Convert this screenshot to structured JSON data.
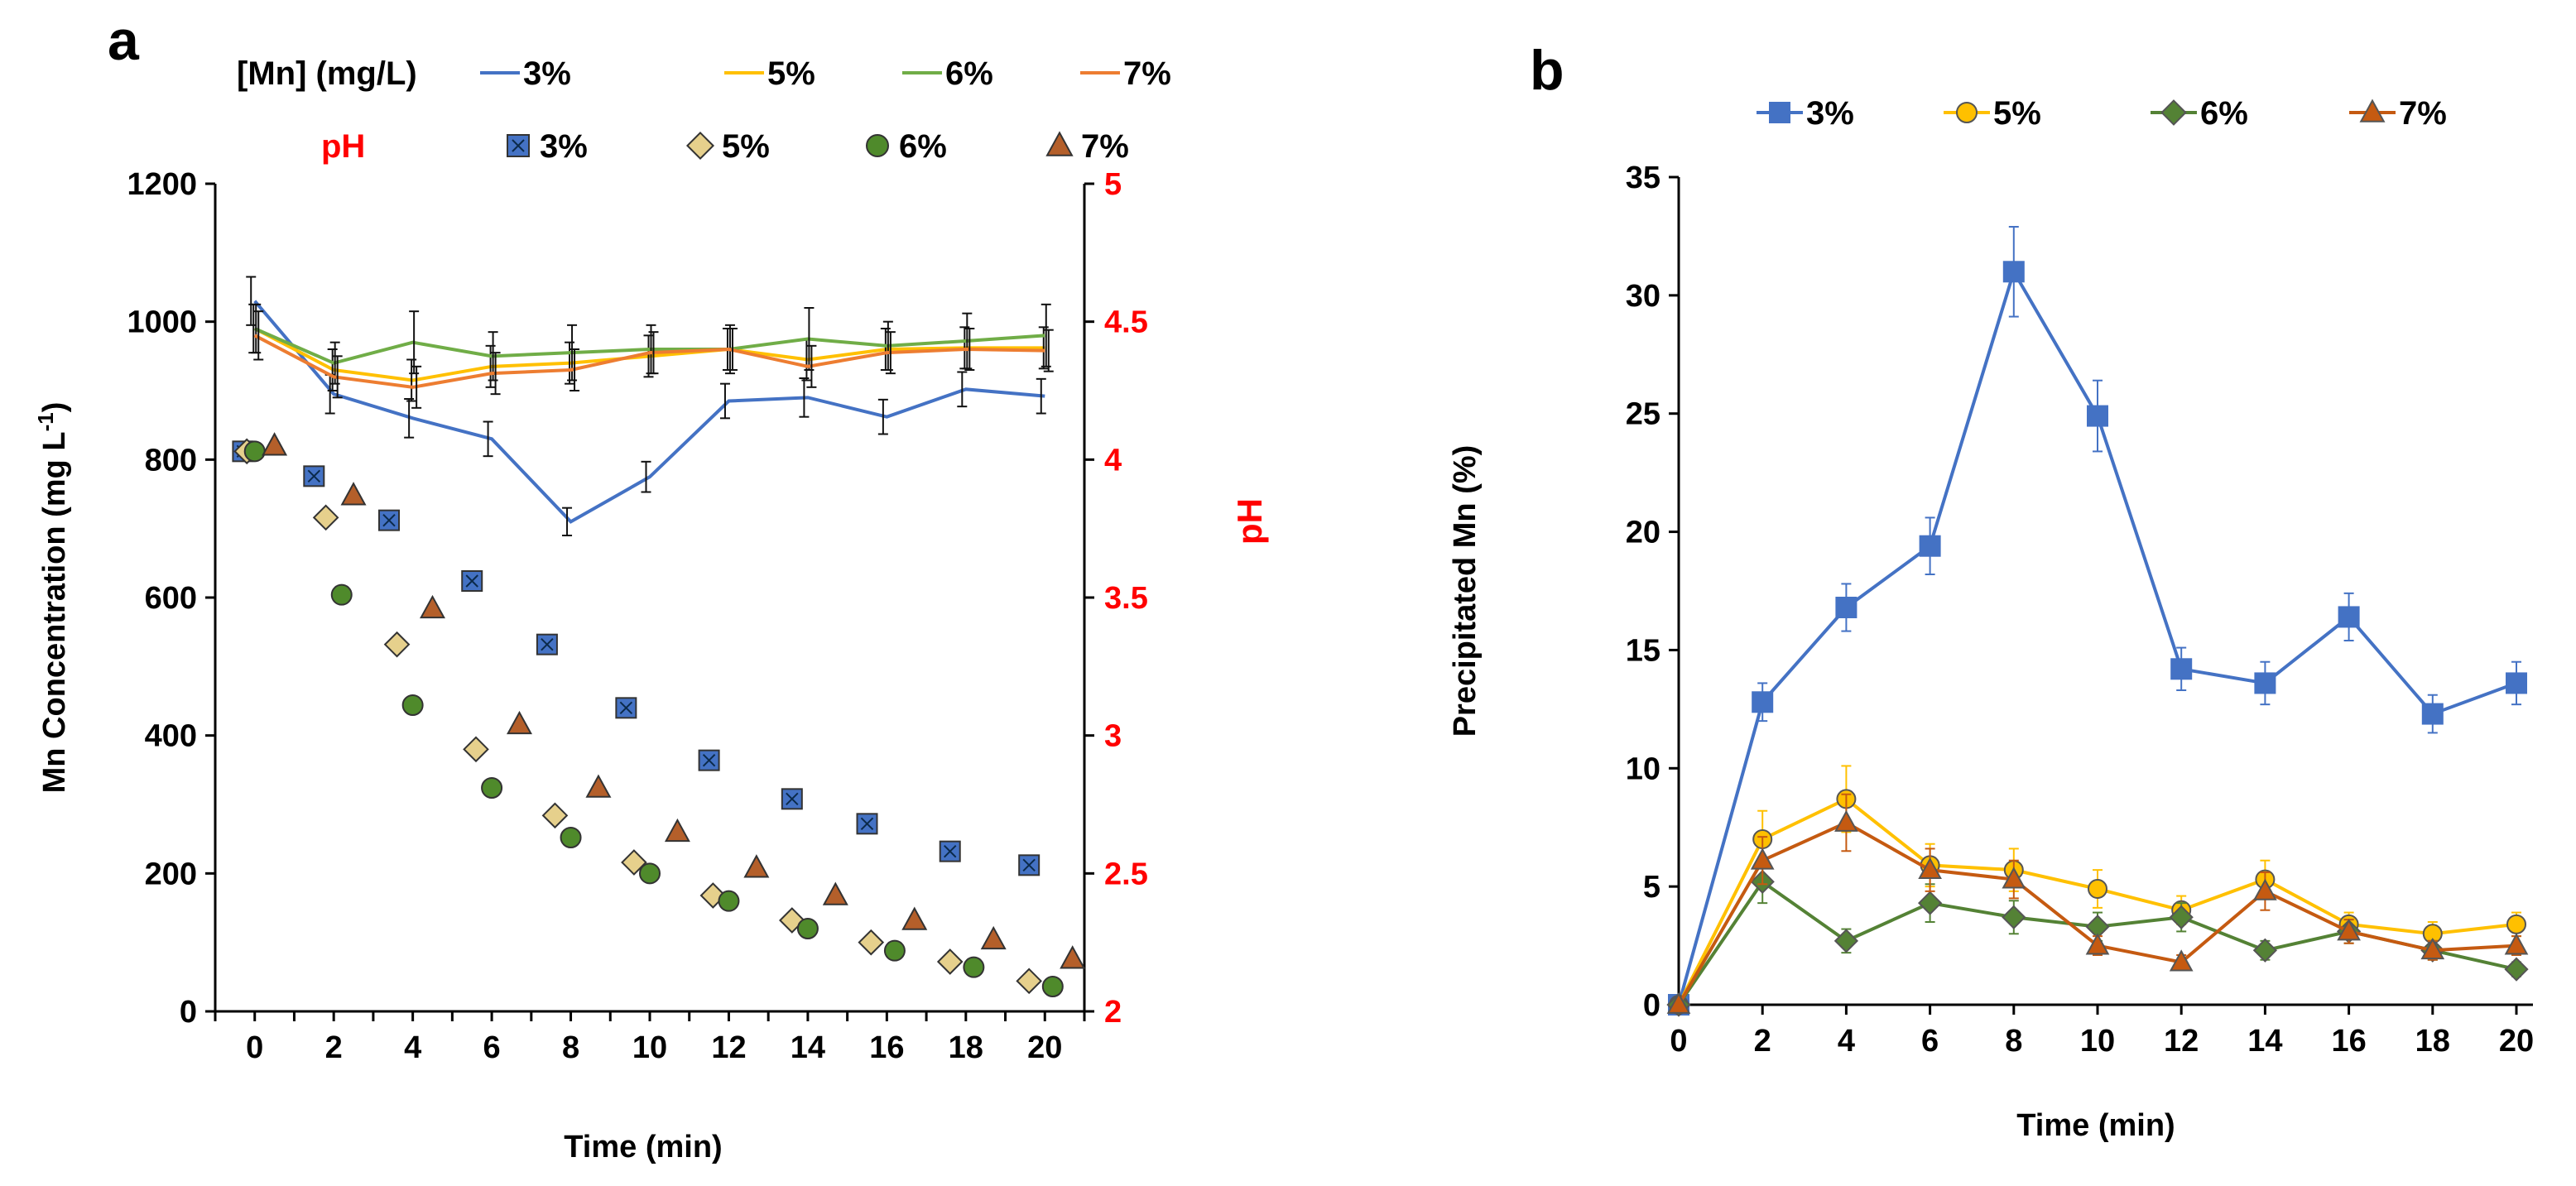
{
  "colors": {
    "c3": "#4472c4",
    "c5": "#ffc000",
    "c6": "#70ad47",
    "c7": "#ed7d31",
    "s5_fill": "#e6d08c",
    "s6_fill": "#4f8a2b",
    "s7_fill": "#b45f2a",
    "b_c3": "#4472c4",
    "b_c5": "#ffc000",
    "b_c6": "#548235",
    "b_c7": "#c55a11",
    "red": "#ff0000"
  },
  "chart_data": [
    {
      "panel": "a",
      "type": "line",
      "ylabel": "Mn Concentration (mg L",
      "ylabel_sup": "-1",
      "ylabel_close": ")",
      "y2label": "pH",
      "xlabel": "Time (min)",
      "ylim": [
        0,
        1200
      ],
      "y2lim": [
        2,
        5
      ],
      "xlim": [
        -1,
        21
      ],
      "x_ticks": [
        "0",
        "2",
        "4",
        "6",
        "8",
        "10",
        "12",
        "14",
        "16",
        "18",
        "20"
      ],
      "x_tick_values": [
        0,
        2,
        4,
        6,
        8,
        10,
        12,
        14,
        16,
        18,
        20
      ],
      "y_ticks": [
        "0",
        "200",
        "400",
        "600",
        "800",
        "1000",
        "1200"
      ],
      "y_tick_values": [
        0,
        200,
        400,
        600,
        800,
        1000,
        1200
      ],
      "y2_ticks": [
        "2",
        "2.5",
        "3",
        "3.5",
        "4",
        "4.5",
        "5"
      ],
      "y2_tick_values": [
        2,
        2.5,
        3,
        3.5,
        4,
        4.5,
        5
      ],
      "legend_line_title": "[Mn] (mg/L)",
      "legend_marker_title": "pH",
      "x": [
        0,
        2,
        4,
        6,
        8,
        10,
        12,
        14,
        16,
        18,
        20
      ],
      "mn_series": [
        {
          "name": "3%",
          "key": "c3",
          "values": [
            1030,
            895,
            860,
            830,
            710,
            775,
            885,
            890,
            862,
            902,
            892
          ],
          "err": [
            35,
            28,
            28,
            25,
            20,
            22,
            25,
            28,
            25,
            25,
            25
          ]
        },
        {
          "name": "5%",
          "key": "c5",
          "values": [
            990,
            930,
            915,
            935,
            940,
            950,
            960,
            945,
            960,
            962,
            962
          ],
          "err": [
            35,
            30,
            30,
            30,
            30,
            30,
            30,
            30,
            30,
            30,
            30
          ]
        },
        {
          "name": "6%",
          "key": "c6",
          "values": [
            990,
            940,
            970,
            950,
            955,
            960,
            960,
            975,
            965,
            972,
            980
          ],
          "err": [
            35,
            30,
            45,
            35,
            40,
            35,
            35,
            45,
            35,
            40,
            45
          ]
        },
        {
          "name": "7%",
          "key": "c7",
          "values": [
            980,
            920,
            905,
            925,
            930,
            955,
            960,
            935,
            955,
            960,
            958
          ],
          "err": [
            35,
            30,
            30,
            30,
            30,
            30,
            30,
            30,
            30,
            30,
            30
          ]
        }
      ],
      "ph_series": [
        {
          "name": "3%",
          "marker": "square",
          "fill": "c3",
          "x": [
            -0.3,
            1.5,
            3.4,
            5.5,
            7.4,
            9.4,
            11.5,
            13.6,
            15.5,
            17.6,
            19.6
          ],
          "values": [
            4.03,
            3.94,
            3.78,
            3.56,
            3.33,
            3.1,
            2.91,
            2.77,
            2.68,
            2.58,
            2.53
          ]
        },
        {
          "name": "5%",
          "marker": "diamond",
          "fill": "s5_fill",
          "x": [
            -0.2,
            1.8,
            3.6,
            5.6,
            7.6,
            9.6,
            11.6,
            13.6,
            15.6,
            17.6,
            19.6
          ],
          "values": [
            4.03,
            3.79,
            3.33,
            2.95,
            2.71,
            2.54,
            2.42,
            2.33,
            2.25,
            2.18,
            2.11
          ]
        },
        {
          "name": "6%",
          "marker": "circle",
          "fill": "s6_fill",
          "x": [
            0,
            2.2,
            4,
            6,
            8,
            10,
            12,
            14,
            16.2,
            18.2,
            20.2
          ],
          "values": [
            4.03,
            3.51,
            3.11,
            2.81,
            2.63,
            2.5,
            2.4,
            2.3,
            2.22,
            2.16,
            2.09
          ]
        },
        {
          "name": "7%",
          "marker": "triangle",
          "fill": "s7_fill",
          "x": [
            0.5,
            2.5,
            4.5,
            6.7,
            8.7,
            10.7,
            12.7,
            14.7,
            16.7,
            18.7,
            20.7
          ],
          "values": [
            4.05,
            3.87,
            3.46,
            3.04,
            2.81,
            2.65,
            2.52,
            2.42,
            2.33,
            2.26,
            2.19
          ]
        }
      ]
    },
    {
      "panel": "b",
      "type": "line",
      "ylabel": "Precipitated Mn (%)",
      "xlabel": "Time (min)",
      "ylim": [
        0,
        35
      ],
      "xlim": [
        0,
        20
      ],
      "x_ticks": [
        "0",
        "2",
        "4",
        "6",
        "8",
        "10",
        "12",
        "14",
        "16",
        "18",
        "20"
      ],
      "x_tick_values": [
        0,
        2,
        4,
        6,
        8,
        10,
        12,
        14,
        16,
        18,
        20
      ],
      "y_ticks": [
        "0",
        "5",
        "10",
        "15",
        "20",
        "25",
        "30",
        "35"
      ],
      "y_tick_values": [
        0,
        5,
        10,
        15,
        20,
        25,
        30,
        35
      ],
      "x": [
        0,
        2,
        4,
        6,
        8,
        10,
        12,
        14,
        16,
        18,
        20
      ],
      "series": [
        {
          "name": "3%",
          "marker": "square",
          "key": "b_c3",
          "values": [
            0,
            12.8,
            16.8,
            19.4,
            31,
            24.9,
            14.2,
            13.6,
            16.4,
            12.3,
            13.6
          ],
          "err": [
            0,
            0.8,
            1.0,
            1.2,
            1.9,
            1.5,
            0.9,
            0.9,
            1.0,
            0.8,
            0.9
          ]
        },
        {
          "name": "5%",
          "marker": "circle",
          "key": "b_c5",
          "values": [
            0,
            7.0,
            8.7,
            5.9,
            5.7,
            4.9,
            4.0,
            5.3,
            3.4,
            3.0,
            3.4
          ],
          "err": [
            0,
            1.2,
            1.4,
            0.9,
            0.9,
            0.8,
            0.6,
            0.8,
            0.5,
            0.5,
            0.5
          ]
        },
        {
          "name": "6%",
          "marker": "diamond",
          "key": "b_c6",
          "values": [
            0,
            5.2,
            2.7,
            4.3,
            3.7,
            3.3,
            3.7,
            2.3,
            3.1,
            2.3,
            1.5
          ],
          "err": [
            0,
            0.9,
            0.5,
            0.8,
            0.7,
            0.6,
            0.6,
            0.4,
            0.5,
            0.4,
            0.3
          ]
        },
        {
          "name": "7%",
          "marker": "triangle",
          "key": "b_c7",
          "values": [
            0,
            6.1,
            7.7,
            5.7,
            5.3,
            2.5,
            1.8,
            4.8,
            3.1,
            2.3,
            2.5
          ],
          "err": [
            0,
            1.0,
            1.2,
            0.9,
            0.8,
            0.4,
            0.3,
            0.8,
            0.5,
            0.4,
            0.4
          ]
        }
      ]
    }
  ]
}
